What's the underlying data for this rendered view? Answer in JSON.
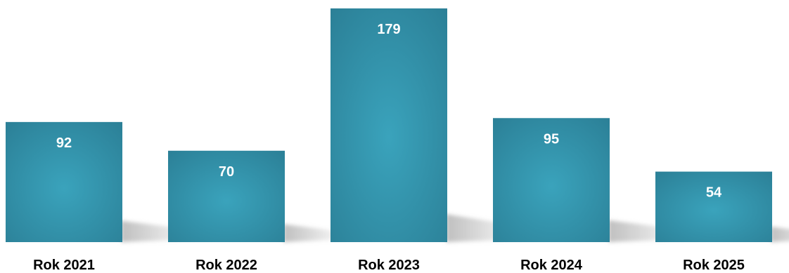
{
  "chart_data": {
    "type": "bar",
    "categories": [
      "Rok 2021",
      "Rok 2022",
      "Rok 2023",
      "Rok 2024",
      "Rok 2025"
    ],
    "values": [
      92,
      70,
      179,
      95,
      54
    ],
    "value_labels": [
      "92",
      "70",
      "179",
      "95",
      "54"
    ],
    "title": "",
    "xlabel": "",
    "ylabel": "",
    "ylim": [
      0,
      179
    ],
    "grid": false,
    "legend": "none",
    "data_labels": "inside-top",
    "colors": {
      "bar_center": "#3aa3bc",
      "bar_edge": "#2b7f96",
      "shadow": "#b8b8b8",
      "value_text": "#ffffff",
      "category_text": "#000000",
      "background": "#ffffff"
    }
  }
}
